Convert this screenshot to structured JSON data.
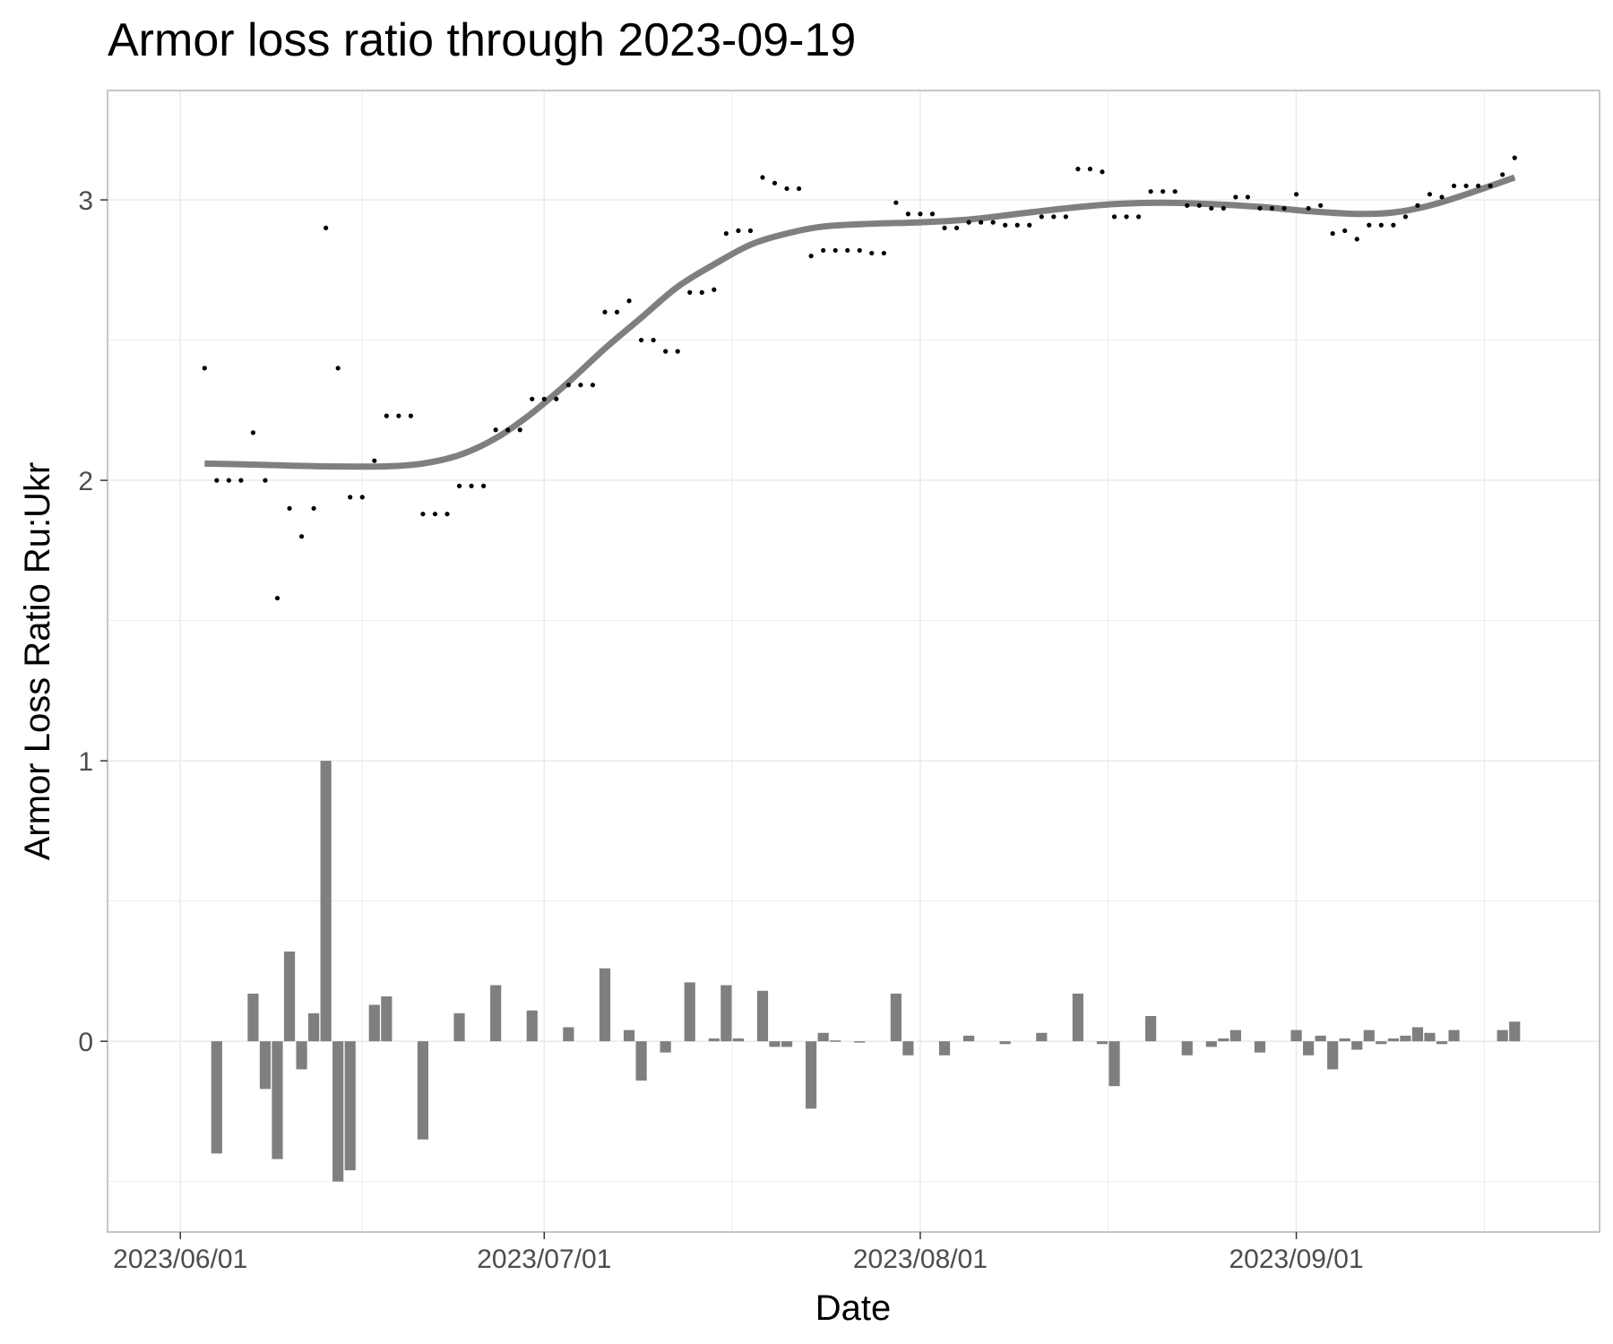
{
  "chart_data": {
    "type": "line",
    "title": "Armor loss ratio through 2023-09-19",
    "xlabel": "Date",
    "ylabel": "Armor Loss Ratio Ru:Ukr",
    "x_axis": {
      "type": "date",
      "range": [
        "2023-05-26",
        "2023-09-26"
      ],
      "ticks": [
        {
          "value": "2023-06-01",
          "label": "2023/06/01"
        },
        {
          "value": "2023-07-01",
          "label": "2023/07/01"
        },
        {
          "value": "2023-08-01",
          "label": "2023/08/01"
        },
        {
          "value": "2023-09-01",
          "label": "2023/09/01"
        }
      ]
    },
    "y_axis": {
      "range": [
        -0.68,
        3.39
      ],
      "ticks": [
        {
          "value": 0,
          "label": "0"
        },
        {
          "value": 1,
          "label": "1"
        },
        {
          "value": 2,
          "label": "2"
        },
        {
          "value": 3,
          "label": "3"
        }
      ]
    },
    "grid": true,
    "series": [
      {
        "kind": "points",
        "color": "#000000",
        "points": [
          [
            "2023-06-03",
            2.4
          ],
          [
            "2023-06-04",
            2.0
          ],
          [
            "2023-06-05",
            2.0
          ],
          [
            "2023-06-06",
            2.0
          ],
          [
            "2023-06-07",
            2.17
          ],
          [
            "2023-06-08",
            2.0
          ],
          [
            "2023-06-09",
            1.58
          ],
          [
            "2023-06-10",
            1.9
          ],
          [
            "2023-06-11",
            1.8
          ],
          [
            "2023-06-12",
            1.9
          ],
          [
            "2023-06-13",
            2.9
          ],
          [
            "2023-06-14",
            2.4
          ],
          [
            "2023-06-15",
            1.94
          ],
          [
            "2023-06-16",
            1.94
          ],
          [
            "2023-06-17",
            2.07
          ],
          [
            "2023-06-18",
            2.23
          ],
          [
            "2023-06-19",
            2.23
          ],
          [
            "2023-06-20",
            2.23
          ],
          [
            "2023-06-21",
            1.88
          ],
          [
            "2023-06-22",
            1.88
          ],
          [
            "2023-06-23",
            1.88
          ],
          [
            "2023-06-24",
            1.98
          ],
          [
            "2023-06-25",
            1.98
          ],
          [
            "2023-06-26",
            1.98
          ],
          [
            "2023-06-27",
            2.18
          ],
          [
            "2023-06-28",
            2.18
          ],
          [
            "2023-06-29",
            2.18
          ],
          [
            "2023-06-30",
            2.29
          ],
          [
            "2023-07-01",
            2.29
          ],
          [
            "2023-07-02",
            2.29
          ],
          [
            "2023-07-03",
            2.34
          ],
          [
            "2023-07-04",
            2.34
          ],
          [
            "2023-07-05",
            2.34
          ],
          [
            "2023-07-06",
            2.6
          ],
          [
            "2023-07-07",
            2.6
          ],
          [
            "2023-07-08",
            2.64
          ],
          [
            "2023-07-09",
            2.5
          ],
          [
            "2023-07-10",
            2.5
          ],
          [
            "2023-07-11",
            2.46
          ],
          [
            "2023-07-12",
            2.46
          ],
          [
            "2023-07-13",
            2.67
          ],
          [
            "2023-07-14",
            2.67
          ],
          [
            "2023-07-15",
            2.68
          ],
          [
            "2023-07-16",
            2.88
          ],
          [
            "2023-07-17",
            2.89
          ],
          [
            "2023-07-18",
            2.89
          ],
          [
            "2023-07-19",
            3.08
          ],
          [
            "2023-07-20",
            3.06
          ],
          [
            "2023-07-21",
            3.04
          ],
          [
            "2023-07-22",
            3.04
          ],
          [
            "2023-07-23",
            2.8
          ],
          [
            "2023-07-24",
            2.82
          ],
          [
            "2023-07-25",
            2.82
          ],
          [
            "2023-07-26",
            2.82
          ],
          [
            "2023-07-27",
            2.82
          ],
          [
            "2023-07-28",
            2.81
          ],
          [
            "2023-07-29",
            2.81
          ],
          [
            "2023-07-30",
            2.99
          ],
          [
            "2023-07-31",
            2.95
          ],
          [
            "2023-08-01",
            2.95
          ],
          [
            "2023-08-02",
            2.95
          ],
          [
            "2023-08-03",
            2.9
          ],
          [
            "2023-08-04",
            2.9
          ],
          [
            "2023-08-05",
            2.92
          ],
          [
            "2023-08-06",
            2.92
          ],
          [
            "2023-08-07",
            2.92
          ],
          [
            "2023-08-08",
            2.91
          ],
          [
            "2023-08-09",
            2.91
          ],
          [
            "2023-08-10",
            2.91
          ],
          [
            "2023-08-11",
            2.94
          ],
          [
            "2023-08-12",
            2.94
          ],
          [
            "2023-08-13",
            2.94
          ],
          [
            "2023-08-14",
            3.11
          ],
          [
            "2023-08-15",
            3.11
          ],
          [
            "2023-08-16",
            3.1
          ],
          [
            "2023-08-17",
            2.94
          ],
          [
            "2023-08-18",
            2.94
          ],
          [
            "2023-08-19",
            2.94
          ],
          [
            "2023-08-20",
            3.03
          ],
          [
            "2023-08-21",
            3.03
          ],
          [
            "2023-08-22",
            3.03
          ],
          [
            "2023-08-23",
            2.98
          ],
          [
            "2023-08-24",
            2.98
          ],
          [
            "2023-08-25",
            2.97
          ],
          [
            "2023-08-26",
            2.97
          ],
          [
            "2023-08-27",
            3.01
          ],
          [
            "2023-08-28",
            3.01
          ],
          [
            "2023-08-29",
            2.97
          ],
          [
            "2023-08-30",
            2.97
          ],
          [
            "2023-08-31",
            2.97
          ],
          [
            "2023-09-01",
            3.02
          ],
          [
            "2023-09-02",
            2.97
          ],
          [
            "2023-09-03",
            2.98
          ],
          [
            "2023-09-04",
            2.88
          ],
          [
            "2023-09-05",
            2.89
          ],
          [
            "2023-09-06",
            2.86
          ],
          [
            "2023-09-07",
            2.91
          ],
          [
            "2023-09-08",
            2.91
          ],
          [
            "2023-09-09",
            2.91
          ],
          [
            "2023-09-10",
            2.94
          ],
          [
            "2023-09-11",
            2.98
          ],
          [
            "2023-09-12",
            3.02
          ],
          [
            "2023-09-13",
            3.01
          ],
          [
            "2023-09-14",
            3.05
          ],
          [
            "2023-09-15",
            3.05
          ],
          [
            "2023-09-16",
            3.05
          ],
          [
            "2023-09-17",
            3.05
          ],
          [
            "2023-09-18",
            3.09
          ],
          [
            "2023-09-19",
            3.15
          ]
        ]
      },
      {
        "kind": "smooth",
        "color": "#7f7f7f",
        "points": [
          [
            "2023-06-03",
            2.06
          ],
          [
            "2023-06-08",
            2.055
          ],
          [
            "2023-06-13",
            2.05
          ],
          [
            "2023-06-18",
            2.05
          ],
          [
            "2023-06-21",
            2.06
          ],
          [
            "2023-06-24",
            2.09
          ],
          [
            "2023-06-27",
            2.15
          ],
          [
            "2023-06-30",
            2.24
          ],
          [
            "2023-07-03",
            2.35
          ],
          [
            "2023-07-06",
            2.47
          ],
          [
            "2023-07-09",
            2.58
          ],
          [
            "2023-07-12",
            2.69
          ],
          [
            "2023-07-15",
            2.77
          ],
          [
            "2023-07-18",
            2.84
          ],
          [
            "2023-07-21",
            2.88
          ],
          [
            "2023-07-24",
            2.905
          ],
          [
            "2023-07-28",
            2.915
          ],
          [
            "2023-08-01",
            2.92
          ],
          [
            "2023-08-05",
            2.93
          ],
          [
            "2023-08-09",
            2.95
          ],
          [
            "2023-08-13",
            2.97
          ],
          [
            "2023-08-17",
            2.985
          ],
          [
            "2023-08-21",
            2.99
          ],
          [
            "2023-08-25",
            2.985
          ],
          [
            "2023-08-29",
            2.975
          ],
          [
            "2023-09-02",
            2.96
          ],
          [
            "2023-09-06",
            2.95
          ],
          [
            "2023-09-09",
            2.955
          ],
          [
            "2023-09-12",
            2.98
          ],
          [
            "2023-09-15",
            3.02
          ],
          [
            "2023-09-19",
            3.08
          ]
        ]
      },
      {
        "kind": "bars",
        "color": "#7f7f7f",
        "points": [
          [
            "2023-06-04",
            -0.4
          ],
          [
            "2023-06-07",
            0.17
          ],
          [
            "2023-06-08",
            -0.17
          ],
          [
            "2023-06-09",
            -0.42
          ],
          [
            "2023-06-10",
            0.32
          ],
          [
            "2023-06-11",
            -0.1
          ],
          [
            "2023-06-12",
            0.1
          ],
          [
            "2023-06-13",
            1.0
          ],
          [
            "2023-06-14",
            -0.5
          ],
          [
            "2023-06-15",
            -0.46
          ],
          [
            "2023-06-17",
            0.13
          ],
          [
            "2023-06-18",
            0.16
          ],
          [
            "2023-06-21",
            -0.35
          ],
          [
            "2023-06-24",
            0.1
          ],
          [
            "2023-06-27",
            0.2
          ],
          [
            "2023-06-30",
            0.11
          ],
          [
            "2023-07-03",
            0.05
          ],
          [
            "2023-07-06",
            0.26
          ],
          [
            "2023-07-08",
            0.04
          ],
          [
            "2023-07-09",
            -0.14
          ],
          [
            "2023-07-11",
            -0.04
          ],
          [
            "2023-07-13",
            0.21
          ],
          [
            "2023-07-15",
            0.01
          ],
          [
            "2023-07-16",
            0.2
          ],
          [
            "2023-07-17",
            0.01
          ],
          [
            "2023-07-19",
            0.18
          ],
          [
            "2023-07-20",
            -0.02
          ],
          [
            "2023-07-21",
            -0.02
          ],
          [
            "2023-07-23",
            -0.24
          ],
          [
            "2023-07-24",
            0.03
          ],
          [
            "2023-07-25",
            0.003
          ],
          [
            "2023-07-27",
            -0.004
          ],
          [
            "2023-07-30",
            0.17
          ],
          [
            "2023-07-31",
            -0.05
          ],
          [
            "2023-08-03",
            -0.05
          ],
          [
            "2023-08-05",
            0.02
          ],
          [
            "2023-08-08",
            -0.01
          ],
          [
            "2023-08-11",
            0.03
          ],
          [
            "2023-08-14",
            0.17
          ],
          [
            "2023-08-16",
            -0.01
          ],
          [
            "2023-08-17",
            -0.16
          ],
          [
            "2023-08-20",
            0.09
          ],
          [
            "2023-08-23",
            -0.05
          ],
          [
            "2023-08-25",
            -0.02
          ],
          [
            "2023-08-26",
            0.01
          ],
          [
            "2023-08-27",
            0.04
          ],
          [
            "2023-08-29",
            -0.04
          ],
          [
            "2023-09-01",
            0.04
          ],
          [
            "2023-09-02",
            -0.05
          ],
          [
            "2023-09-03",
            0.02
          ],
          [
            "2023-09-04",
            -0.1
          ],
          [
            "2023-09-05",
            0.01
          ],
          [
            "2023-09-06",
            -0.03
          ],
          [
            "2023-09-07",
            0.04
          ],
          [
            "2023-09-08",
            -0.01
          ],
          [
            "2023-09-09",
            0.01
          ],
          [
            "2023-09-10",
            0.02
          ],
          [
            "2023-09-11",
            0.05
          ],
          [
            "2023-09-12",
            0.03
          ],
          [
            "2023-09-13",
            -0.01
          ],
          [
            "2023-09-14",
            0.04
          ],
          [
            "2023-09-18",
            0.04
          ],
          [
            "2023-09-19",
            0.07
          ]
        ]
      }
    ]
  }
}
